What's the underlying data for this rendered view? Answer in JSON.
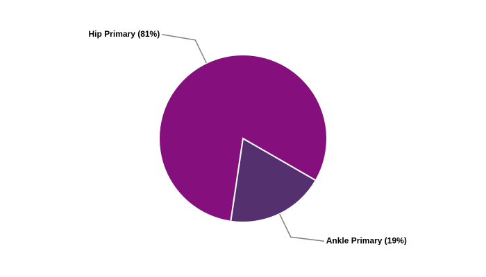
{
  "chart_data": {
    "type": "pie",
    "categories": [
      "Hip Primary (81%)",
      "Ankle Primary (19%)"
    ],
    "values": [
      81,
      19
    ],
    "colors": [
      "#850f7d",
      "#54306e"
    ]
  }
}
